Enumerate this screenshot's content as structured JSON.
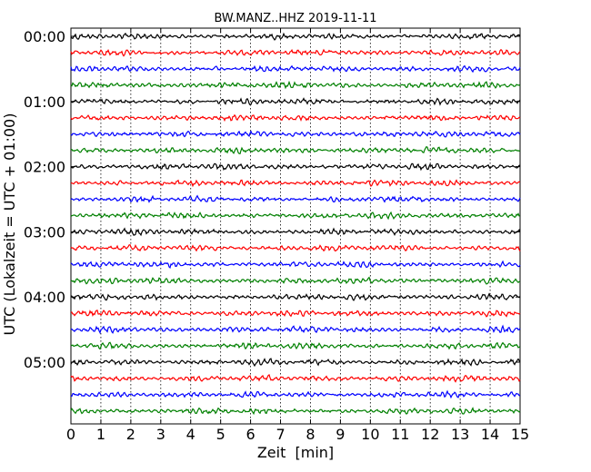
{
  "chart_data": {
    "type": "line",
    "title": "BW.MANZ..HHZ 2019-11-11",
    "xlabel": "Zeit  [min]",
    "ylabel": "UTC (Lokalzeit = UTC + 01:00)",
    "xlim": [
      0,
      15
    ],
    "x_ticks": [
      "0",
      "1",
      "2",
      "3",
      "4",
      "5",
      "6",
      "7",
      "8",
      "9",
      "10",
      "11",
      "12",
      "13",
      "14",
      "15"
    ],
    "y_ticks": [
      "00:00",
      "01:00",
      "02:00",
      "03:00",
      "04:00",
      "05:00"
    ],
    "hours_shown": 6,
    "rows_per_hour": 4,
    "minutes_per_row": 15,
    "grid": {
      "vertical": true,
      "style": "dotted"
    },
    "series_colors": [
      "#000000",
      "#ff0000",
      "#0000ff",
      "#008000"
    ],
    "signal": "seismogram traces, low amplitude background noise"
  }
}
